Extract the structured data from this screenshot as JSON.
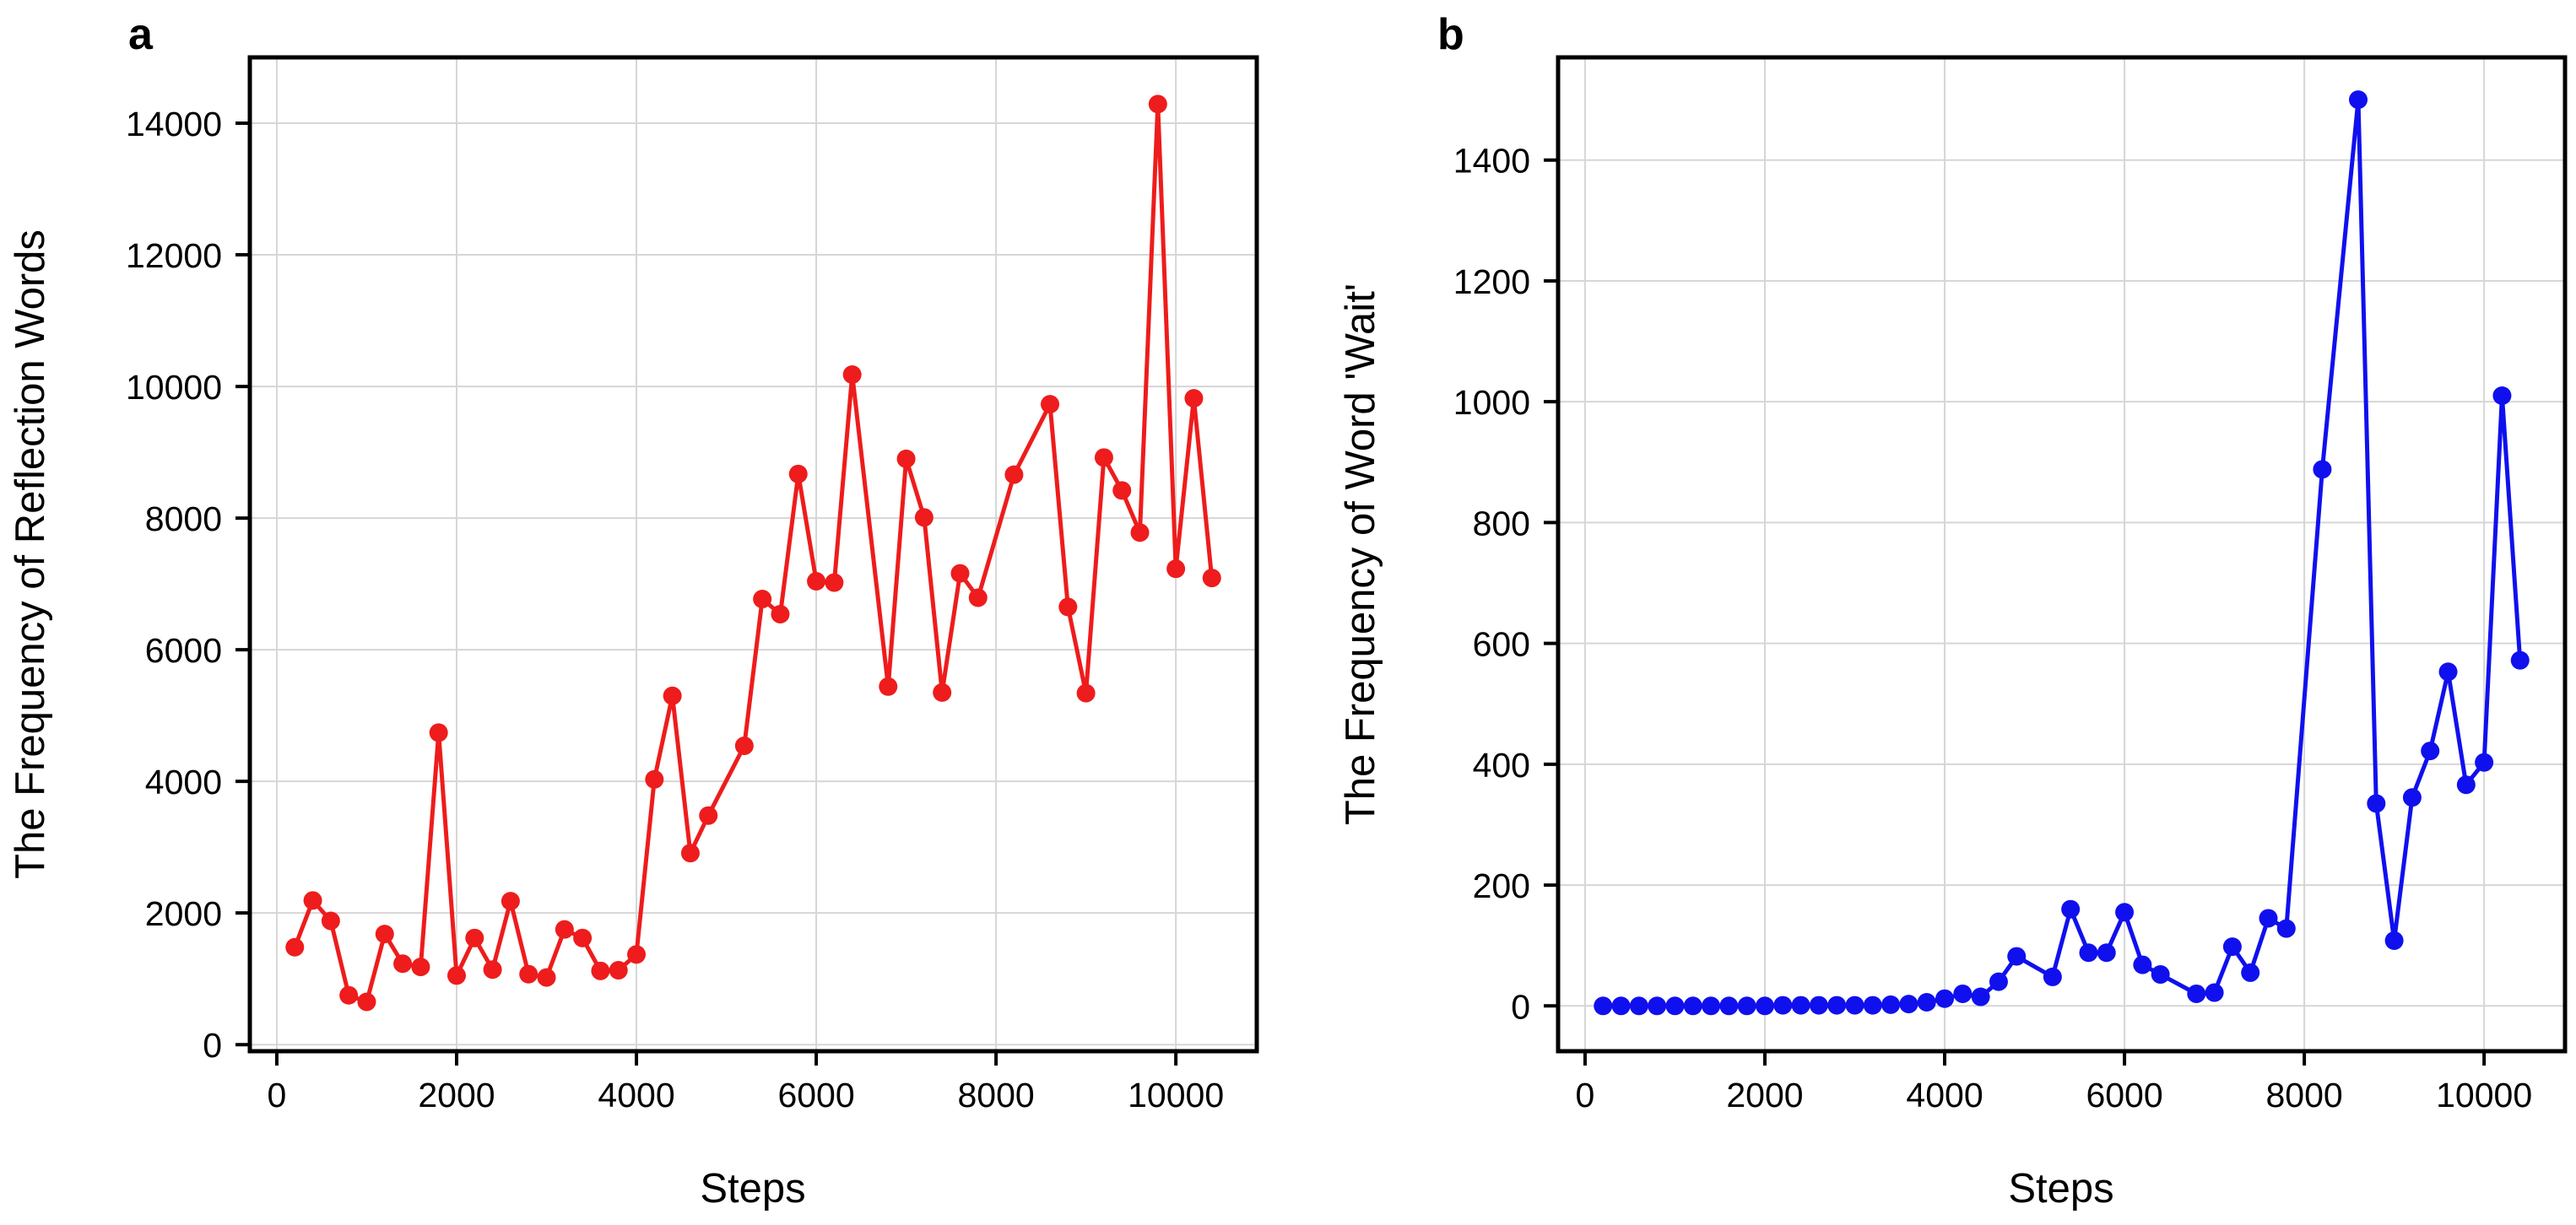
{
  "chart_data": [
    {
      "panel": "a",
      "type": "line",
      "xlabel": "Steps",
      "ylabel": "The Frequency of Reflection Words",
      "xlim": [
        -300,
        10900
      ],
      "ylim": [
        -100,
        15000
      ],
      "xticks": [
        0,
        2000,
        4000,
        6000,
        8000,
        10000
      ],
      "yticks": [
        0,
        2000,
        4000,
        6000,
        8000,
        10000,
        12000,
        14000
      ],
      "grid": true,
      "color": "#ee1c1c",
      "marker": "circle",
      "series": [
        {
          "x": [
            200,
            400,
            600,
            800,
            1000,
            1200,
            1400,
            1600,
            1800,
            2000,
            2200,
            2400,
            2600,
            2800,
            3000,
            3200,
            3400,
            3600,
            3800,
            4000,
            4200,
            4400,
            4600,
            4800,
            5200,
            5400,
            5600,
            5800,
            6000,
            6200,
            6400,
            6800,
            7000,
            7200,
            7400,
            7600,
            7800,
            8200,
            8600,
            8800,
            9000,
            9200,
            9400,
            9600,
            9800,
            10000,
            10200,
            10400
          ],
          "y": [
            1480,
            2190,
            1880,
            750,
            650,
            1680,
            1230,
            1180,
            4740,
            1050,
            1620,
            1140,
            2180,
            1070,
            1020,
            1750,
            1620,
            1120,
            1130,
            1370,
            4030,
            5300,
            2910,
            3480,
            4540,
            6770,
            6540,
            8670,
            7040,
            7020,
            10180,
            5440,
            8900,
            8010,
            5350,
            7160,
            6790,
            8660,
            9730,
            6650,
            5340,
            8920,
            8420,
            7780,
            14290,
            7230,
            9820,
            7090
          ]
        }
      ]
    },
    {
      "panel": "b",
      "type": "line",
      "xlabel": "Steps",
      "ylabel": "The Frequency of Word 'Wait'",
      "xlim": [
        -300,
        10900
      ],
      "ylim": [
        -75,
        1570
      ],
      "xticks": [
        0,
        2000,
        4000,
        6000,
        8000,
        10000
      ],
      "yticks": [
        0,
        200,
        400,
        600,
        800,
        1000,
        1200,
        1400
      ],
      "grid": true,
      "color": "#1010ee",
      "marker": "circle",
      "series": [
        {
          "x": [
            200,
            400,
            600,
            800,
            1000,
            1200,
            1400,
            1600,
            1800,
            2000,
            2200,
            2400,
            2600,
            2800,
            3000,
            3200,
            3400,
            3600,
            3800,
            4000,
            4200,
            4400,
            4600,
            4800,
            5200,
            5400,
            5600,
            5800,
            6000,
            6200,
            6400,
            6800,
            7000,
            7200,
            7400,
            7600,
            7800,
            8200,
            8600,
            8800,
            9000,
            9200,
            9400,
            9600,
            9800,
            10000,
            10200,
            10400
          ],
          "y": [
            0,
            0,
            0,
            0,
            0,
            0,
            0,
            0,
            0,
            0,
            1,
            1,
            1,
            1,
            1,
            1,
            2,
            3,
            6,
            12,
            20,
            15,
            40,
            82,
            48,
            160,
            88,
            88,
            155,
            68,
            52,
            20,
            22,
            98,
            55,
            145,
            128,
            888,
            1500,
            335,
            108,
            345,
            422,
            553,
            366,
            403,
            1010,
            572
          ]
        }
      ]
    }
  ]
}
